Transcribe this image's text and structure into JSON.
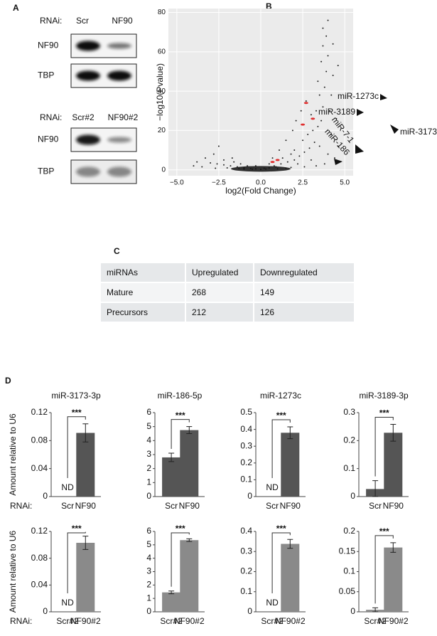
{
  "panel_labels": [
    "A",
    "B",
    "C",
    "D"
  ],
  "blots": [
    {
      "prefix": "RNAi:",
      "lanes": [
        "Scr",
        "NF90"
      ],
      "bands": [
        "NF90",
        "TBP"
      ]
    },
    {
      "prefix": "RNAi:",
      "lanes": [
        "Scr#2",
        "NF90#2"
      ],
      "bands": [
        "NF90",
        "TBP"
      ]
    }
  ],
  "table": {
    "header": [
      "miRNAs",
      "Upregulated",
      "Downregulated"
    ],
    "rows": [
      [
        "Mature",
        "268",
        "149"
      ],
      [
        "Precursors",
        "212",
        "126"
      ]
    ]
  },
  "chart_data": [
    {
      "type": "scatter",
      "xlabel": "log2(Fold Change)",
      "ylabel": "−log10(Pvalue)",
      "xlim": [
        -5.5,
        5.5
      ],
      "ylim": [
        -3,
        82
      ],
      "xticks": [
        {
          "value": -5,
          "label": "−5.0"
        },
        {
          "value": -2.5,
          "label": "−2.5"
        },
        {
          "value": 0,
          "label": "0.0"
        },
        {
          "value": 2.5,
          "label": "2.5"
        },
        {
          "value": 5,
          "label": "5.0"
        }
      ],
      "yticks": [
        0,
        20,
        40,
        60,
        80
      ],
      "grid": true,
      "color": "#222222",
      "x": [
        -0.3,
        0.2,
        0.5,
        -0.6,
        -1,
        -1.4,
        -1.8,
        -2.2,
        -2.6,
        -3.0,
        -3.3,
        -2.8,
        -2.5,
        -2.2,
        -1.6,
        -1.2,
        -0.8,
        0.8,
        1.2,
        1.6,
        2.0,
        2.3,
        2.6,
        2.9,
        3.2,
        3.5,
        2.0,
        1.8,
        2.5,
        2.8,
        3.1,
        3.4,
        3.6,
        3.0,
        3.3,
        3.7,
        3.5,
        3.8,
        3.4,
        3.9,
        3.6,
        4.0,
        3.7,
        3.9,
        3.7,
        4.0,
        4.3,
        4.6,
        4.3,
        2.7,
        2.4,
        2.1,
        1.9,
        1.5,
        1.1,
        0.7,
        4.2,
        4.1,
        4.5,
        4.2,
        4.6,
        4.0,
        3.0,
        2.2,
        1.0,
        -0.5,
        0.0,
        0.3,
        -1.0,
        1.5,
        -2.0,
        -3.5,
        -4.0,
        -3.8,
        3.8,
        4.4,
        -1.7,
        1.3,
        0.5,
        -0.3,
        2.6,
        3.3,
        -2.7,
        1.8,
        -1.3,
        0.9
      ],
      "y": [
        0.5,
        0.8,
        1,
        0.6,
        1,
        1.5,
        2,
        2.5,
        3,
        3.5,
        6,
        8,
        12,
        5,
        4,
        3,
        2,
        2,
        3,
        4,
        5,
        7,
        9,
        11,
        14,
        12,
        10,
        8,
        15,
        18,
        20,
        22,
        25,
        28,
        30,
        32,
        38,
        42,
        45,
        50,
        55,
        58,
        63,
        68,
        72,
        76,
        64,
        53,
        48,
        35,
        30,
        25,
        20,
        15,
        10,
        6,
        38,
        30,
        26,
        18,
        12,
        8,
        5,
        3,
        0.5,
        0.3,
        0.2,
        0.4,
        0.4,
        0.8,
        1,
        1.5,
        2,
        4,
        3,
        6,
        6,
        6,
        3,
        2,
        1.5,
        2,
        0.8,
        1.2,
        0.7,
        1.5
      ],
      "highlight": {
        "color": "#e03030",
        "x": [
          2.7,
          3.1,
          2.5,
          1.0,
          0.7
        ],
        "y": [
          34,
          26,
          23,
          5,
          4
        ]
      },
      "annotations": [
        "miR-1273c",
        "miR-3189",
        "miR-7-1",
        "miR-186",
        "miR-3173"
      ]
    },
    {
      "type": "bar",
      "title": "miR-3173-3p",
      "ylabel": "Amount relative to U6",
      "prefix": "RNAi:",
      "categories": [
        "Scr",
        "NF90"
      ],
      "values": [
        null,
        0.091
      ],
      "errors": [
        null,
        0.013
      ],
      "na_label": "ND",
      "significance": "***",
      "color": "#555555",
      "ylim": [
        0,
        0.12
      ],
      "yticks": [
        0,
        0.04,
        0.08,
        0.12
      ]
    },
    {
      "type": "bar",
      "title": "miR-186-5p",
      "categories": [
        "Scr",
        "NF90"
      ],
      "values": [
        2.8,
        4.75
      ],
      "errors": [
        0.3,
        0.25
      ],
      "significance": "***",
      "color": "#555555",
      "ylim": [
        0,
        6
      ],
      "yticks": [
        0,
        1,
        2,
        3,
        4,
        5,
        6
      ]
    },
    {
      "type": "bar",
      "title": "miR-1273c",
      "categories": [
        "Scr",
        "NF90"
      ],
      "values": [
        null,
        0.38
      ],
      "errors": [
        null,
        0.035
      ],
      "na_label": "ND",
      "significance": "***",
      "color": "#555555",
      "ylim": [
        0,
        0.5
      ],
      "yticks": [
        0,
        0.1,
        0.2,
        0.3,
        0.4,
        0.5
      ]
    },
    {
      "type": "bar",
      "title": "miR-3189-3p",
      "categories": [
        "Scr",
        "NF90"
      ],
      "values": [
        0.027,
        0.228
      ],
      "errors": [
        0.03,
        0.03
      ],
      "significance": "***",
      "color": "#555555",
      "ylim": [
        0,
        0.3
      ],
      "yticks": [
        0,
        0.1,
        0.2,
        0.3
      ]
    },
    {
      "type": "bar",
      "ylabel": "Amount relative to U6",
      "prefix": "RNAi:",
      "categories": [
        "Scr#2",
        "NF90#2"
      ],
      "values": [
        null,
        0.103
      ],
      "errors": [
        null,
        0.01
      ],
      "na_label": "ND",
      "significance": "***",
      "color": "#8a8a8a",
      "ylim": [
        0,
        0.12
      ],
      "yticks": [
        0,
        0.04,
        0.08,
        0.12
      ]
    },
    {
      "type": "bar",
      "categories": [
        "Scr#2",
        "NF90#2"
      ],
      "values": [
        1.45,
        5.35
      ],
      "errors": [
        0.1,
        0.1
      ],
      "significance": "***",
      "color": "#8a8a8a",
      "ylim": [
        0,
        6
      ],
      "yticks": [
        0,
        1,
        2,
        3,
        4,
        5,
        6
      ]
    },
    {
      "type": "bar",
      "categories": [
        "Scr#2",
        "NF90#2"
      ],
      "values": [
        null,
        0.338
      ],
      "errors": [
        null,
        0.022
      ],
      "na_label": "ND",
      "significance": "***",
      "color": "#8a8a8a",
      "ylim": [
        0,
        0.4
      ],
      "yticks": [
        0,
        0.1,
        0.2,
        0.3,
        0.4
      ]
    },
    {
      "type": "bar",
      "categories": [
        "Scr#2",
        "NF90#2"
      ],
      "values": [
        0.005,
        0.16
      ],
      "errors": [
        0.005,
        0.012
      ],
      "significance": "***",
      "color": "#8a8a8a",
      "ylim": [
        0,
        0.2
      ],
      "yticks": [
        0,
        0.05,
        0.1,
        0.15,
        0.2
      ]
    }
  ]
}
